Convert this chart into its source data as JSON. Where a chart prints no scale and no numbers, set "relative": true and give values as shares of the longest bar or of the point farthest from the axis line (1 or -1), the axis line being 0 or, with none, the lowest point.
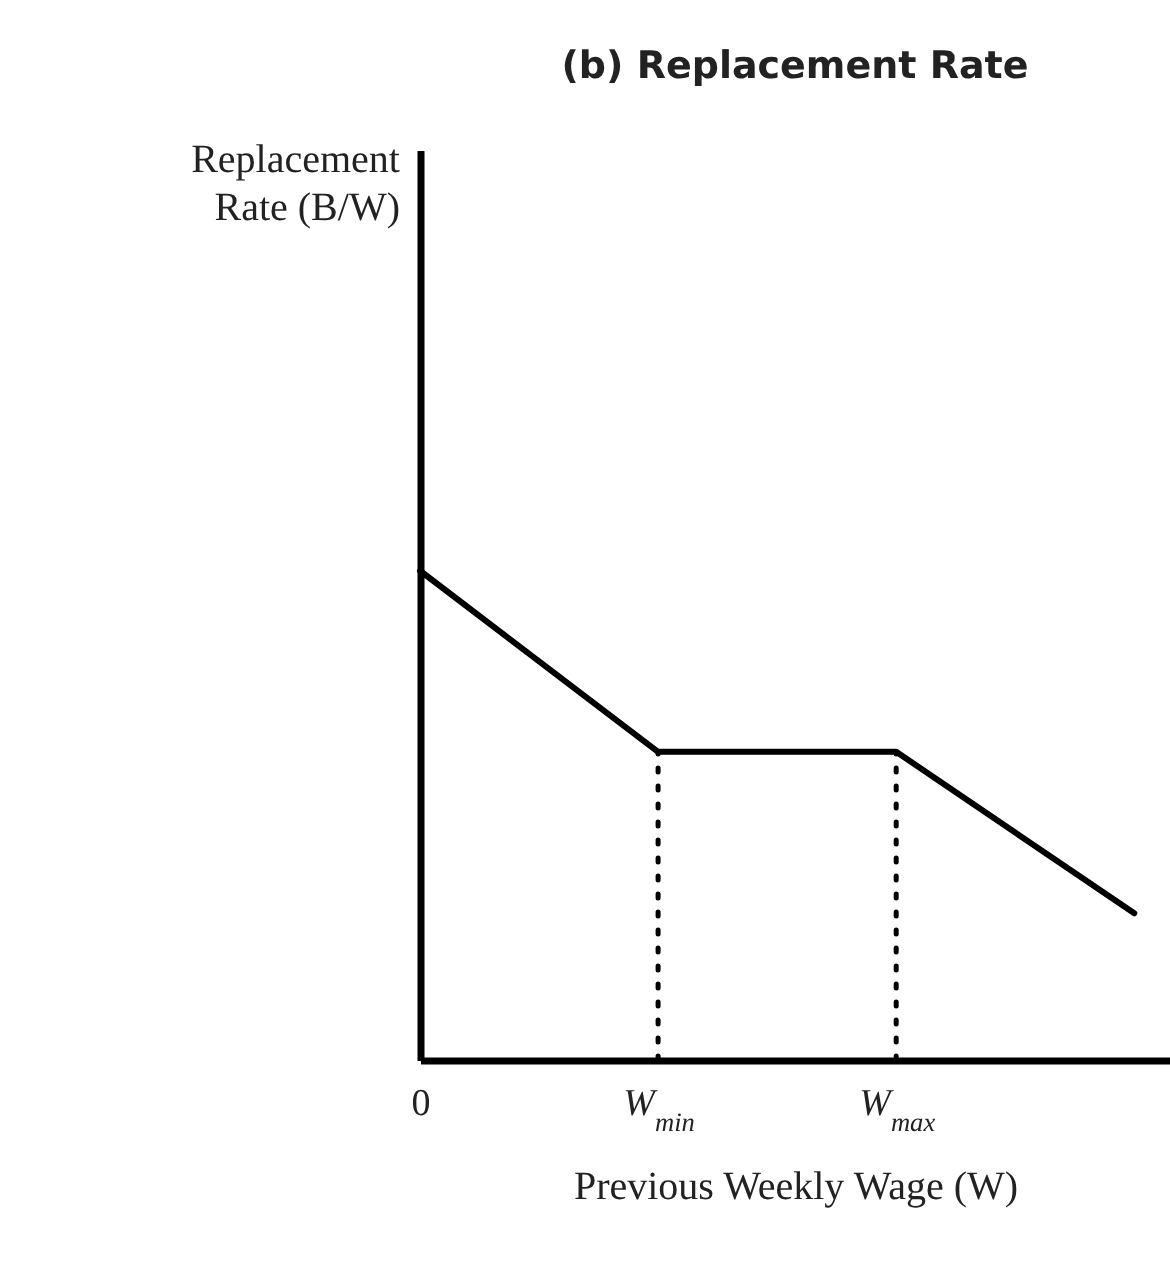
{
  "chart_data": {
    "type": "line",
    "title": "(b) Replacement Rate",
    "xlabel": "Previous Weekly Wage (W)",
    "annotations": [
      "Replacement Rate (B/W)"
    ],
    "relative": true,
    "categories": [
      "0",
      "W$_{min}$",
      "W$_{max}$",
      null
    ],
    "marker": "none",
    "series": [
      {
        "values": [
          1,
          0.63,
          0.63,
          0.3
        ],
        "color": "#000000",
        "line_style": "solid"
      },
      {
        "x": [
          "W$_{min}$",
          "W$_{min}$"
        ],
        "values": [
          0,
          0.63
        ],
        "color": "#000000",
        "line_style": "dotted"
      },
      {
        "x": [
          "W$_{max}$",
          "W$_{max}$"
        ],
        "values": [
          0,
          0.63
        ],
        "color": "#000000",
        "line_style": "dotted"
      }
    ]
  }
}
